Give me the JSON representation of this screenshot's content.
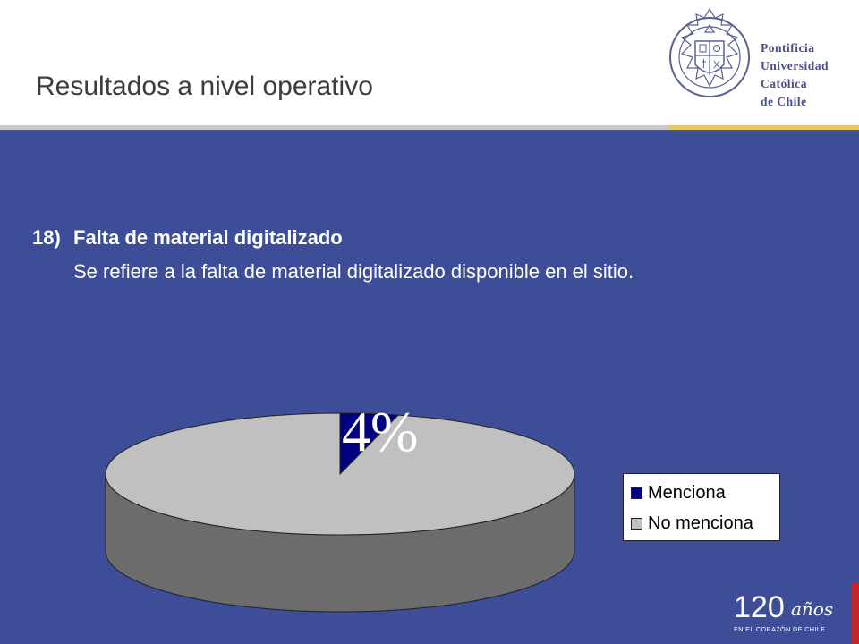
{
  "header": {
    "title": "Resultados a nivel operativo",
    "logo_lines": [
      "Pontificia",
      "Universidad",
      "Católica",
      "de Chile"
    ]
  },
  "question": {
    "number": "18)",
    "title": "Falta de material digitalizado",
    "description": "Se refiere a la falta de material digitalizado disponible en el sitio."
  },
  "chart_data": {
    "type": "pie",
    "categories": [
      "Menciona",
      "No menciona"
    ],
    "values": [
      4,
      96
    ],
    "colors": [
      "#000080",
      "#c0c0c0"
    ],
    "data_labels": [
      "4%"
    ],
    "legend_placement": "right"
  },
  "footer": {
    "anniversary_number": "120",
    "anniversary_word": "años",
    "anniversary_tagline": "EN EL CORAZÓN DE CHILE"
  },
  "colors": {
    "background_main": "#3d4d98",
    "title_text": "#3c3c3c",
    "gold_rule": "#e7c66a",
    "accent_red": "#c8242b"
  }
}
